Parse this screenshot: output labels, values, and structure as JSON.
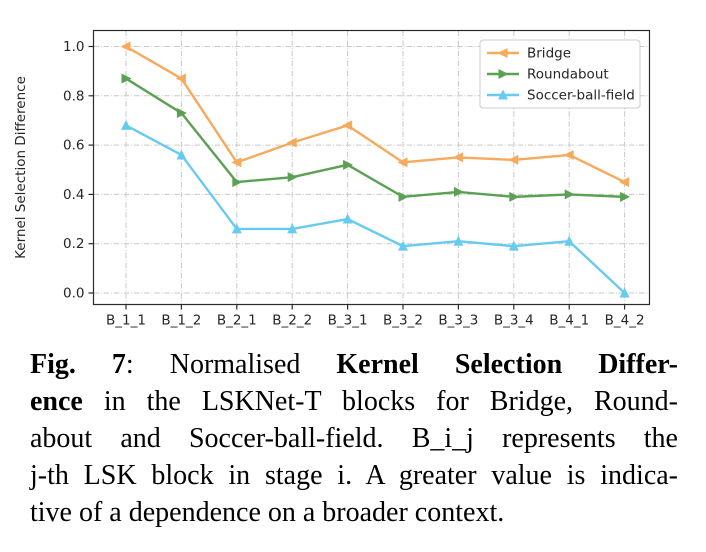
{
  "chart_data": {
    "type": "line",
    "title": "",
    "xlabel": "",
    "ylabel": "Kernel Selection Difference",
    "categories": [
      "B_1_1",
      "B_1_2",
      "B_2_1",
      "B_2_2",
      "B_3_1",
      "B_3_2",
      "B_3_3",
      "B_3_4",
      "B_4_1",
      "B_4_2"
    ],
    "yticks": [
      "0.0",
      "0.2",
      "0.4",
      "0.6",
      "0.8",
      "1.0"
    ],
    "ylim": [
      -0.05,
      1.07
    ],
    "grid": true,
    "grid_style": "dash-dot",
    "legend_position": "upper-right",
    "series": [
      {
        "name": "Bridge",
        "color": "#F7A95C",
        "marker": "triangle-left",
        "values": [
          1.0,
          0.87,
          0.53,
          0.61,
          0.68,
          0.53,
          0.55,
          0.54,
          0.56,
          0.45
        ]
      },
      {
        "name": "Roundabout",
        "color": "#5BA054",
        "marker": "triangle-right",
        "values": [
          0.87,
          0.73,
          0.45,
          0.47,
          0.52,
          0.39,
          0.41,
          0.39,
          0.4,
          0.39
        ]
      },
      {
        "name": "Soccer-ball-field",
        "color": "#67CBF0",
        "marker": "triangle-up",
        "values": [
          0.68,
          0.56,
          0.26,
          0.26,
          0.3,
          0.19,
          0.21,
          0.19,
          0.21,
          0.0
        ]
      }
    ]
  },
  "figure": {
    "caption_lines": [
      {
        "justify": true,
        "segments": [
          {
            "text": "Fig. 7",
            "bold": true
          },
          {
            "text": ": Normalised ",
            "bold": false
          },
          {
            "text": "Kernel Selection Differ-",
            "bold": true
          }
        ]
      },
      {
        "justify": true,
        "segments": [
          {
            "text": "ence",
            "bold": true
          },
          {
            "text": " in the LSKNet-T blocks for Bridge, Round-",
            "bold": false
          }
        ]
      },
      {
        "justify": true,
        "segments": [
          {
            "text": "about and Soccer-ball-field. B_i_j represents the",
            "bold": false
          }
        ]
      },
      {
        "justify": true,
        "segments": [
          {
            "text": "j-th LSK block in stage i. A greater value is indica-",
            "bold": false
          }
        ]
      },
      {
        "justify": false,
        "segments": [
          {
            "text": "tive of a dependence on a broader context.",
            "bold": false
          }
        ]
      }
    ]
  }
}
